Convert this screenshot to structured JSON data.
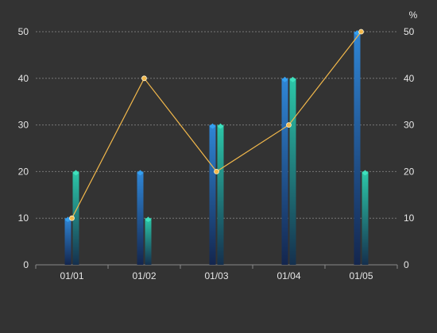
{
  "chart_data": {
    "type": "bar",
    "categories": [
      "01/01",
      "01/02",
      "01/03",
      "01/04",
      "01/05"
    ],
    "series": [
      {
        "type": "bar",
        "axis": "left",
        "values": [
          10,
          20,
          30,
          40,
          50
        ]
      },
      {
        "type": "bar",
        "axis": "left",
        "values": [
          20,
          10,
          30,
          40,
          20
        ]
      },
      {
        "type": "line",
        "axis": "right",
        "values": [
          10,
          40,
          20,
          30,
          50
        ]
      }
    ],
    "y_left": {
      "min": 0,
      "max": 50,
      "ticks": [
        "0",
        "10",
        "20",
        "30",
        "40",
        "50"
      ]
    },
    "y_right": {
      "min": 0,
      "max": 50,
      "ticks": [
        "0",
        "10",
        "20",
        "30",
        "40",
        "50"
      ],
      "unit": "%"
    },
    "grid": true,
    "grid_style": "dashed",
    "colors": {
      "background": "#333333",
      "bar1_top": "#2f86d6",
      "bar1_bottom": "#14264e",
      "bar2_top": "#2cc7a8",
      "bar2_bottom": "#15304e",
      "cap1": "#35a0f0",
      "cap2": "#3fe0bd",
      "line": "#f2b84b",
      "grid": "#777777",
      "text": "#e6e6e6"
    }
  }
}
